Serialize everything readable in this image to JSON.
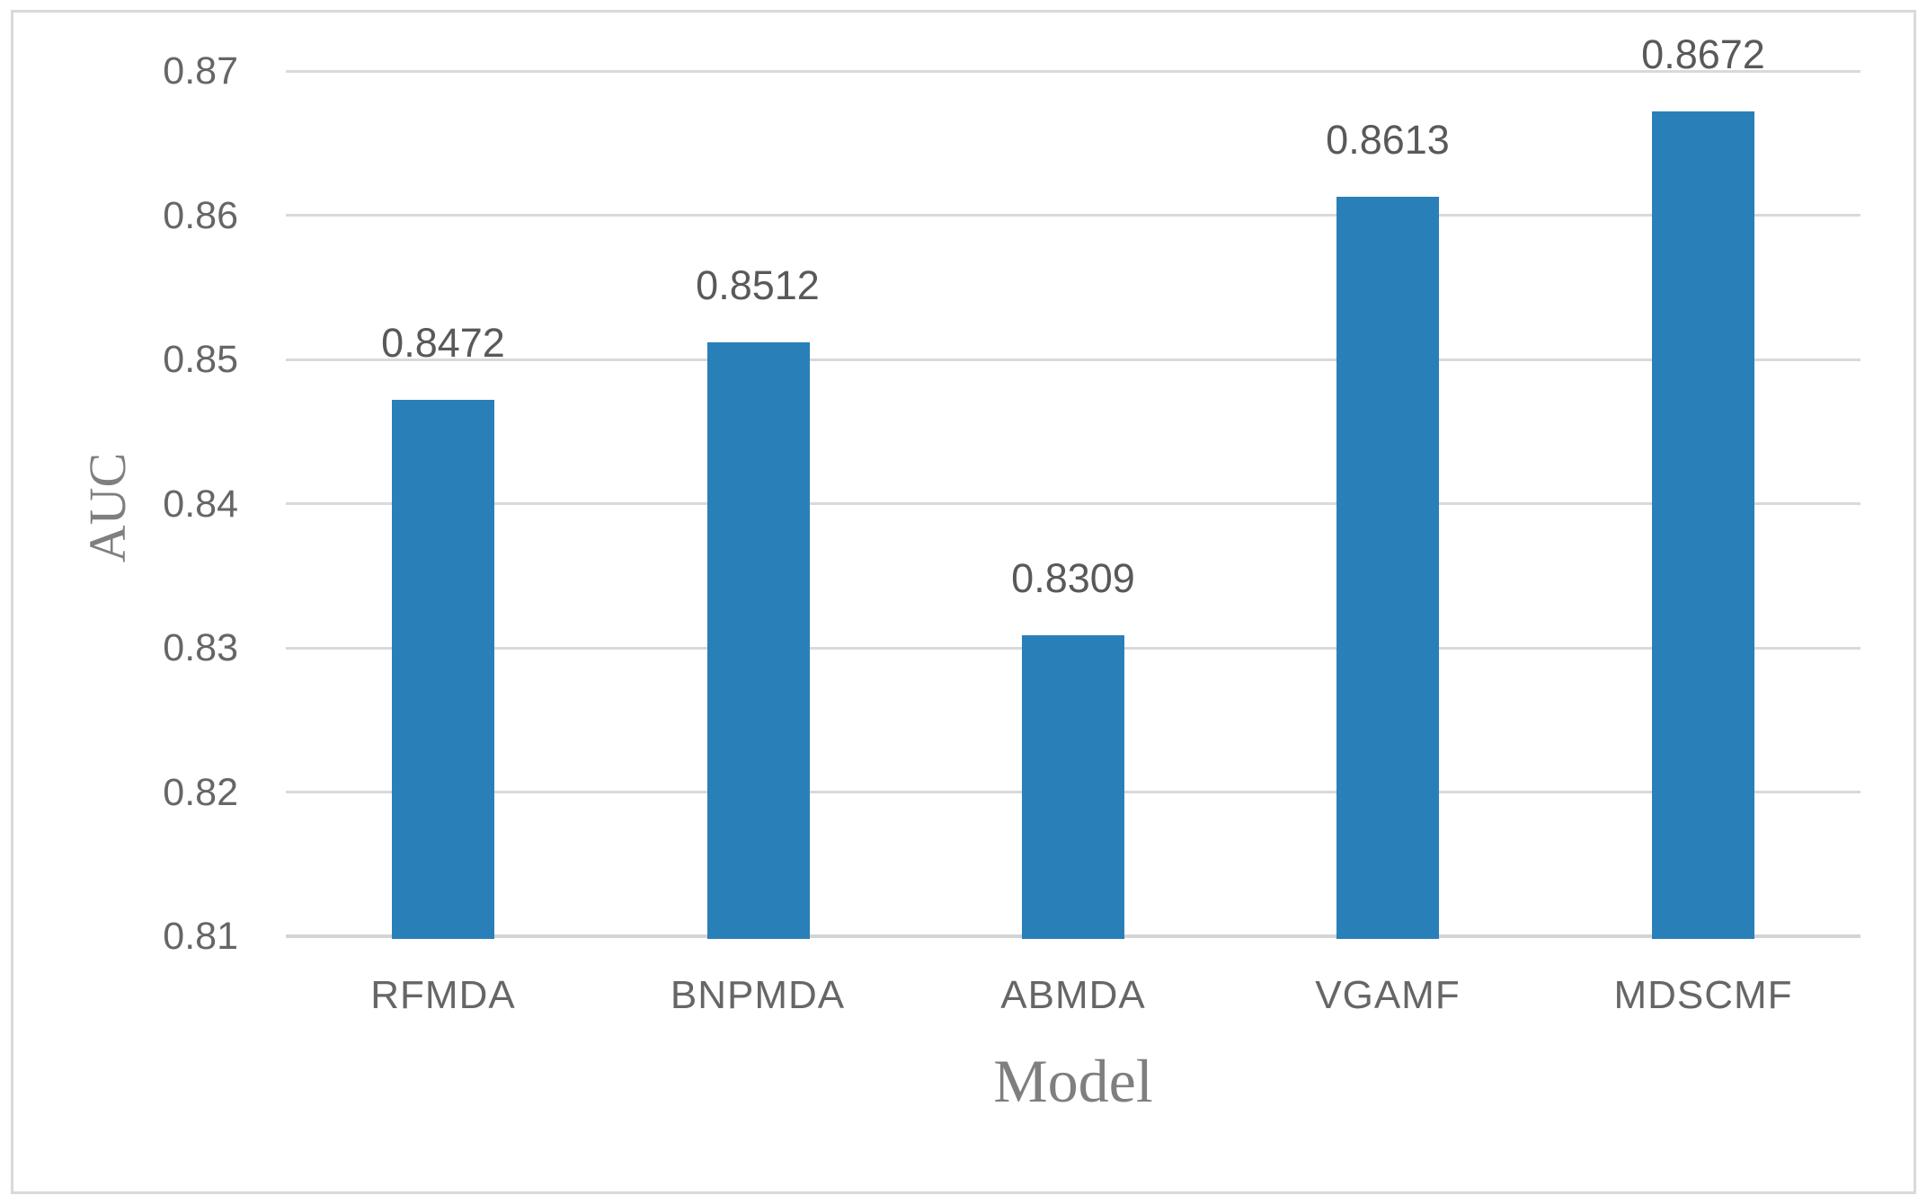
{
  "chart_data": {
    "type": "bar",
    "title": "",
    "xlabel": "Model",
    "ylabel": "AUC",
    "categories": [
      "RFMDA",
      "BNPMDA",
      "ABMDA",
      "VGAMF",
      "MDSCMF"
    ],
    "values": [
      0.8472,
      0.8512,
      0.8309,
      0.8613,
      0.8672
    ],
    "data_labels": [
      "0.8472",
      "0.8512",
      "0.8309",
      "0.8613",
      "0.8672"
    ],
    "ylim": [
      0.81,
      0.87
    ],
    "ytick_labels": [
      "0.87",
      "0.86",
      "0.85",
      "0.84",
      "0.83",
      "0.82",
      "0.81"
    ],
    "grid": "horizontal-gridlines",
    "legend_position": "none",
    "colors": {
      "bar": "#2980B9",
      "gridline": "#D9D9D9",
      "axis_line": "#D4D4D4",
      "data_label": "#595959",
      "tick_label": "#666666",
      "axis_title": "#7F7F7F",
      "figure_border": "#D9D9D9",
      "background": "#FFFFFF"
    }
  }
}
